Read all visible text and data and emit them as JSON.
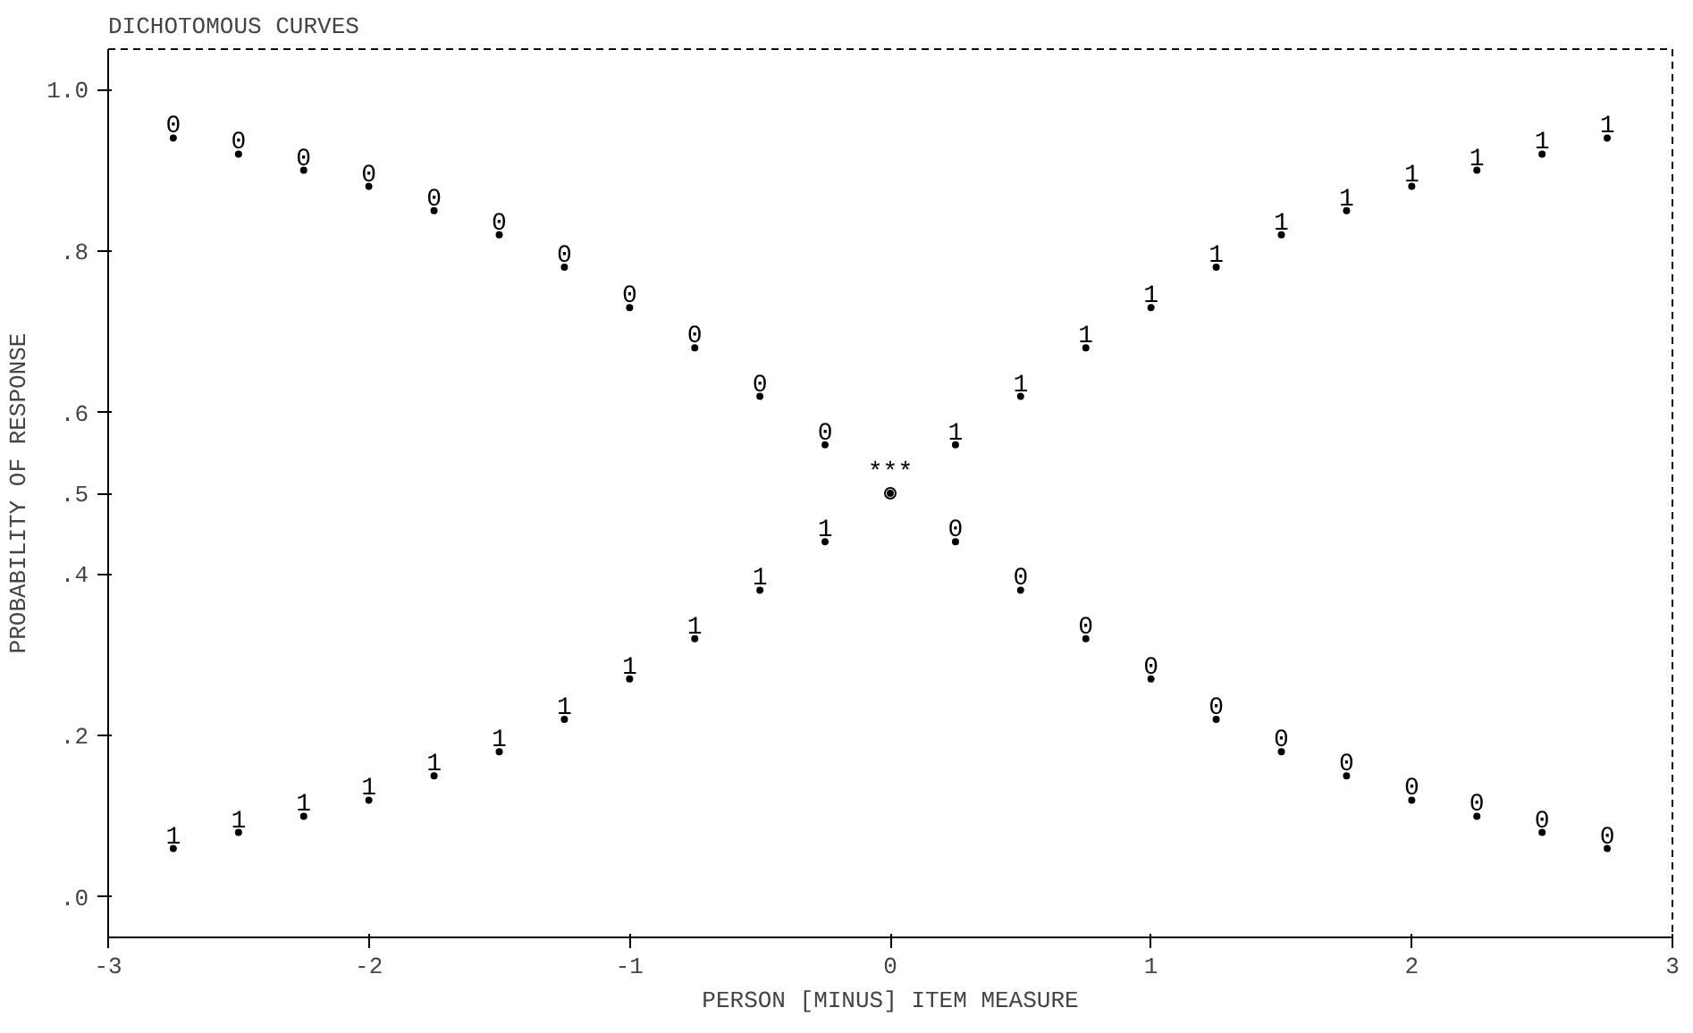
{
  "chart_data": {
    "type": "scatter",
    "title": "DICHOTOMOUS CURVES",
    "xlabel": "PERSON [MINUS] ITEM MEASURE",
    "ylabel": "PROBABILITY OF RESPONSE",
    "annotations": [
      {
        "text": "***",
        "x": 0,
        "y": 0.5
      }
    ],
    "marker": "circle",
    "x": [
      -2.75,
      -2.5,
      -2.25,
      -2,
      -1.75,
      -1.5,
      -1.25,
      -1,
      -0.75,
      -0.5,
      -0.25,
      0,
      0.25,
      0.5,
      0.75,
      1,
      1.25,
      1.5,
      1.75,
      2,
      2.25,
      2.5,
      2.75
    ],
    "series": [
      {
        "name": "0",
        "color": "#000000",
        "values": [
          0.94,
          0.92,
          0.9,
          0.88,
          0.85,
          0.82,
          0.78,
          0.73,
          0.68,
          0.62,
          0.56,
          0.5,
          0.44,
          0.38,
          0.32,
          0.27,
          0.22,
          0.18,
          0.15,
          0.12,
          0.1,
          0.08,
          0.06
        ]
      },
      {
        "name": "1",
        "color": "#000000",
        "values": [
          0.06,
          0.08,
          0.1,
          0.12,
          0.15,
          0.18,
          0.22,
          0.27,
          0.32,
          0.38,
          0.44,
          0.5,
          0.56,
          0.62,
          0.68,
          0.73,
          0.78,
          0.82,
          0.85,
          0.88,
          0.9,
          0.92,
          0.94
        ]
      }
    ],
    "xlim": [
      -3,
      3
    ],
    "xticks": [
      -3,
      -2,
      -1,
      0,
      1,
      2,
      3
    ],
    "ylim": [
      -0.05,
      1.05
    ],
    "yticks": [
      {
        "value": 0,
        "label": ".0"
      },
      {
        "value": 0.2,
        "label": ".2"
      },
      {
        "value": 0.4,
        "label": ".4"
      },
      {
        "value": 0.5,
        "label": ".5"
      },
      {
        "value": 0.6,
        "label": ".6"
      },
      {
        "value": 0.8,
        "label": ".8"
      },
      {
        "value": 1,
        "label": "1.0"
      }
    ],
    "grid": false
  }
}
